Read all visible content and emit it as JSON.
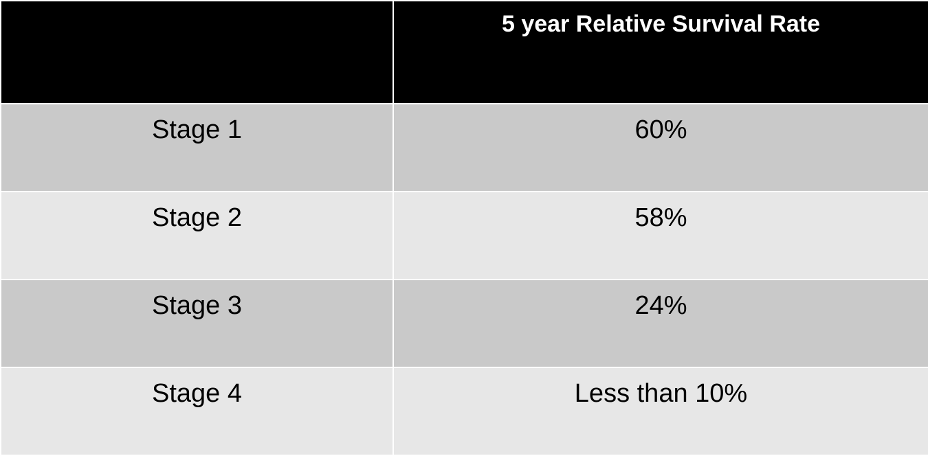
{
  "table": {
    "header": {
      "stage_column": "",
      "rate_column": "5 year Relative Survival Rate"
    },
    "rows": [
      {
        "stage": "Stage 1",
        "rate": "60%"
      },
      {
        "stage": "Stage 2",
        "rate": "58%"
      },
      {
        "stage": "Stage 3",
        "rate": "24%"
      },
      {
        "stage": "Stage 4",
        "rate": "Less than 10%"
      }
    ]
  },
  "colors": {
    "header_background": "#000000",
    "header_text": "#ffffff",
    "row_dark": "#c9c9c9",
    "row_light": "#e7e7e7",
    "grid": "#ffffff"
  }
}
